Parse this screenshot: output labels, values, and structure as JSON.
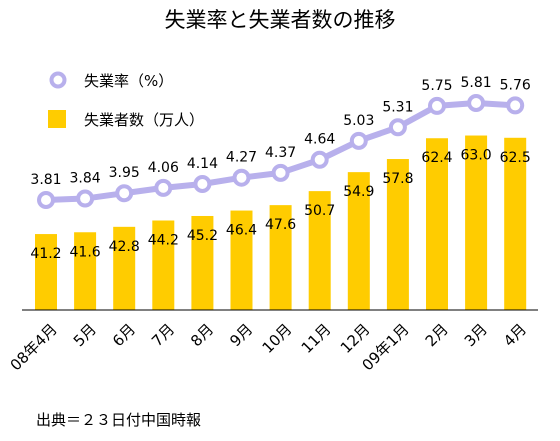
{
  "chart_data": {
    "type": "bar+line",
    "title": "失業率と失業者数の推移",
    "categories": [
      "08年4月",
      "5月",
      "6月",
      "7月",
      "8月",
      "9月",
      "10月",
      "11月",
      "12月",
      "09年1月",
      "2月",
      "3月",
      "4月"
    ],
    "series": [
      {
        "name": "失業率（%）",
        "type": "line",
        "color": "#b8b0ec",
        "values": [
          3.81,
          3.84,
          3.95,
          4.06,
          4.14,
          4.27,
          4.37,
          4.64,
          5.03,
          5.31,
          5.75,
          5.81,
          5.76
        ],
        "value_labels": [
          "3.81",
          "3.84",
          "3.95",
          "4.06",
          "4.14",
          "4.27",
          "4.37",
          "4.64",
          "5.03",
          "5.31",
          "5.75",
          "5.81",
          "5.76"
        ]
      },
      {
        "name": "失業者数（万人）",
        "type": "bar",
        "color": "#ffcc00",
        "values": [
          41.2,
          41.6,
          42.8,
          44.2,
          45.2,
          46.4,
          47.6,
          50.7,
          54.9,
          57.8,
          62.4,
          63.0,
          62.5
        ],
        "value_labels": [
          "41.2",
          "41.6",
          "42.8",
          "44.2",
          "45.2",
          "46.4",
          "47.6",
          "50.7",
          "54.9",
          "57.8",
          "62.4",
          "63.0",
          "62.5"
        ]
      }
    ],
    "legend_position": "top-left",
    "grid": false,
    "source": "出典＝２３日付中国時報"
  }
}
